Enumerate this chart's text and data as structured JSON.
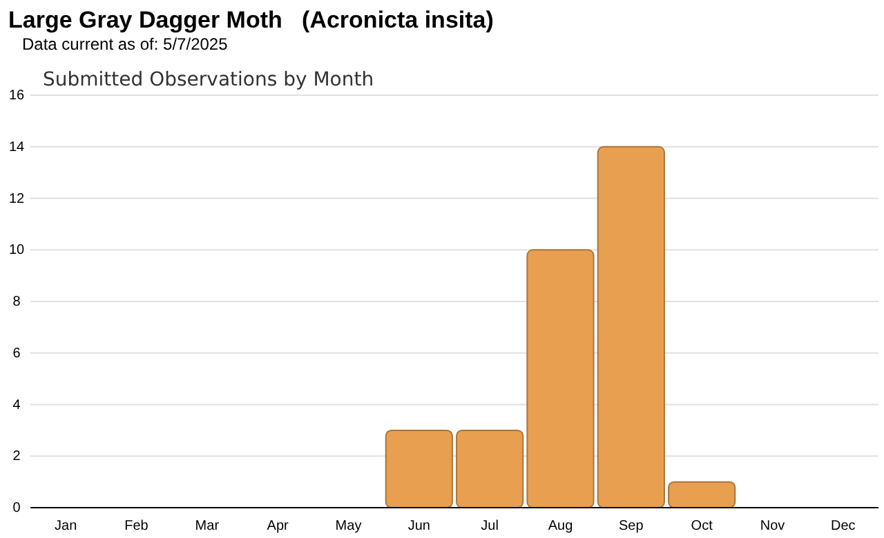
{
  "chart_data": {
    "type": "bar",
    "title": "Large Gray Dagger Moth   (Acronicta insita)",
    "subtitle": "Data current as of: 5/7/2025",
    "annotations": [
      "Submitted Observations by Month"
    ],
    "categories": [
      "Jan",
      "Feb",
      "Mar",
      "Apr",
      "May",
      "Jun",
      "Jul",
      "Aug",
      "Sep",
      "Oct",
      "Nov",
      "Dec"
    ],
    "values": [
      0,
      0,
      0,
      0,
      0,
      3,
      3,
      10,
      14,
      1,
      0,
      0
    ],
    "color": "#e8a050",
    "ylim": [
      0,
      16
    ],
    "yticks": [
      0,
      2,
      4,
      6,
      8,
      10,
      12,
      14,
      16
    ],
    "grid": "y"
  }
}
